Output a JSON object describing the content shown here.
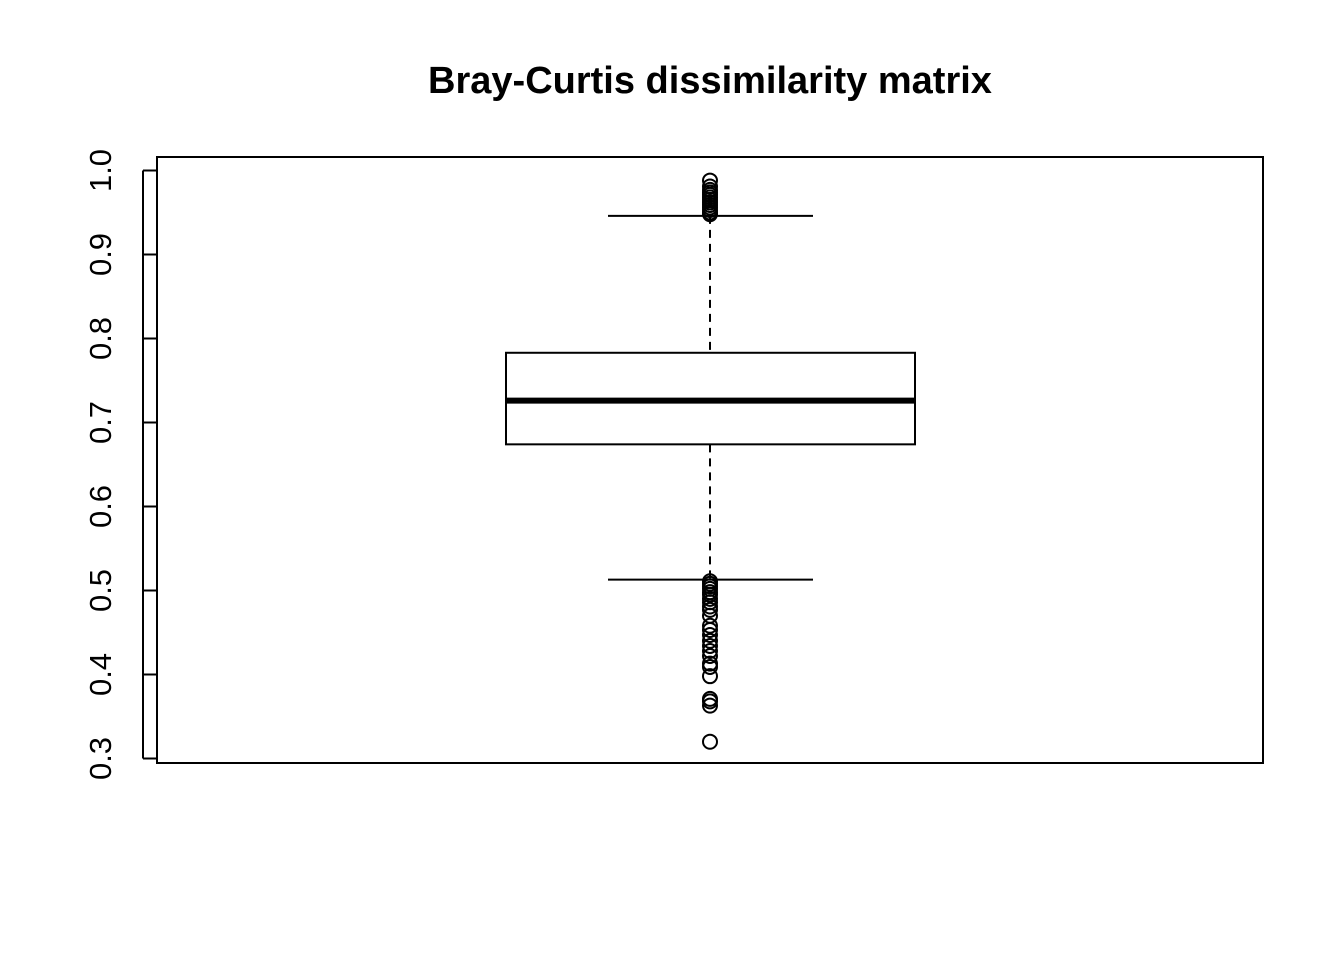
{
  "chart_data": {
    "type": "boxplot",
    "title": "Bray-Curtis dissimilarity matrix",
    "xlabel": "",
    "ylabel": "",
    "ylim": [
      0.3,
      1.0
    ],
    "yticks": [
      "0.3",
      "0.4",
      "0.5",
      "0.6",
      "0.7",
      "0.8",
      "0.9",
      "1.0"
    ],
    "grid": false,
    "legend": "none",
    "series": [
      {
        "lower_whisker": 0.513,
        "q1": 0.674,
        "median": 0.726,
        "q3": 0.783,
        "upper_whisker": 0.946,
        "outliers_high": [
          0.988,
          0.981,
          0.977,
          0.974,
          0.971,
          0.968,
          0.965,
          0.962,
          0.959,
          0.956,
          0.953,
          0.95,
          0.948
        ],
        "outliers_low": [
          0.511,
          0.508,
          0.505,
          0.502,
          0.498,
          0.495,
          0.49,
          0.486,
          0.481,
          0.477,
          0.47,
          0.458,
          0.453,
          0.447,
          0.44,
          0.434,
          0.428,
          0.422,
          0.413,
          0.409,
          0.398,
          0.371,
          0.368,
          0.363,
          0.32
        ]
      }
    ],
    "colors": {
      "line": "#000000",
      "box_fill": "#ffffff"
    }
  }
}
